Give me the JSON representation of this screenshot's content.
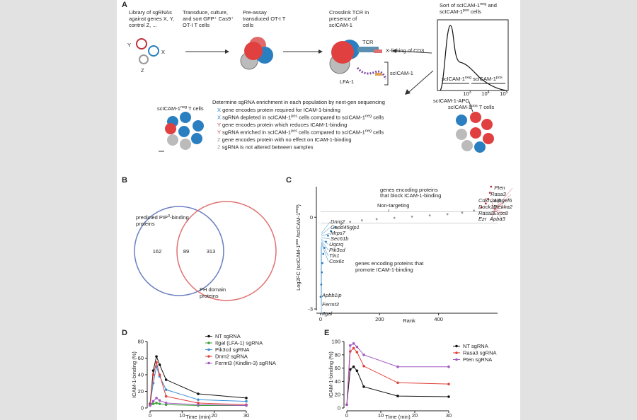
{
  "panel_a": {
    "label": "A",
    "step1": [
      "Library of sgRNAs",
      "against genes X, Y,",
      "control Z, ..."
    ],
    "step2": [
      "Transduce, culture,",
      "and sort GFP⁺ Cas9⁺",
      "OT-I T cells"
    ],
    "step3": [
      "Pre-assay",
      "transduced OT-I T",
      "cells"
    ],
    "step4": [
      "Crosslink TCR in",
      "presence of",
      "scICAM-1"
    ],
    "sort_title": [
      [
        "Sort of scICAM-1",
        "neg",
        " and"
      ],
      [
        "scICAM-1",
        "pos",
        " cells"
      ]
    ],
    "genes": {
      "x": "X",
      "y": "Y",
      "z": "Z"
    },
    "tcr": "TCR",
    "crosslink": "X-linking of CD3",
    "lfa": "LFA-1",
    "scicam": "scICAM-1",
    "gate_neg": [
      "scICAM-1",
      "neg"
    ],
    "gate_pos": [
      "scICAM-1",
      "pos"
    ],
    "hist_ticks": [
      [
        "10",
        "3"
      ],
      [
        "10",
        "4"
      ],
      [
        "10",
        "5"
      ]
    ],
    "hist_axis": "scICAM-1-APC",
    "neg_cells": [
      "scICAM-1",
      "neg",
      " T cells"
    ],
    "pos_cells": [
      "scICAM-1",
      "pos",
      " T cells"
    ],
    "heading": "Determine sgRNA enrichment in each population by next-gen sequencing",
    "lines": [
      {
        "letter": "X",
        "text": [
          " gene encodes protein required for ICAM-1-binding"
        ]
      },
      {
        "letter": "X",
        "text": [
          " sgRNA depleted in scICAM-1",
          "pos",
          " cells compared to scICAM-1",
          "neg",
          " cells"
        ]
      },
      {
        "letter": "Y",
        "text": [
          " gene encodes protein which reduces ICAM-1-binding"
        ]
      },
      {
        "letter": "Y",
        "text": [
          " sgRNA enriched in scICAM-1",
          "pos",
          " cells compared to scICAM-1",
          "neg",
          " cells"
        ]
      },
      {
        "letter": "Z",
        "text": [
          " gene encodes protein with no effect on ICAM-1-binding"
        ]
      },
      {
        "letter": "Z",
        "text": [
          " sgRNA is not altered between samples"
        ]
      }
    ]
  },
  "panel_b": {
    "label": "B",
    "left_name": [
      [
        "predicted PIP",
        "3",
        "-binding"
      ],
      [
        "proteins"
      ]
    ],
    "right_name": [
      "PH domain",
      "proteins"
    ],
    "left_only": "162",
    "both": "89",
    "right_only": "313"
  },
  "panel_c": {
    "label": "C",
    "type": "scatter",
    "y_label": [
      "Log2FC (scICAM-1",
      "pos",
      " /scICAM-1",
      "neg",
      ")"
    ],
    "x_label": "Rank",
    "xlim": [
      0,
      600
    ],
    "xticks": [
      0,
      200,
      400
    ],
    "ylim": [
      -3,
      1
    ],
    "yticks": [
      -3,
      0
    ],
    "x": [
      0,
      2,
      4,
      6,
      9,
      13,
      18,
      25,
      35,
      50,
      70,
      100,
      140,
      190,
      250,
      310,
      370,
      430,
      480,
      520,
      545,
      560,
      568,
      574,
      578
    ],
    "values": [
      -2.6,
      -2.2,
      -1.8,
      -1.5,
      -1.2,
      -1.0,
      -0.8,
      -0.6,
      -0.45,
      -0.32,
      -0.22,
      -0.15,
      -0.1,
      -0.06,
      -0.02,
      0.02,
      0.06,
      0.1,
      0.15,
      0.22,
      0.32,
      0.45,
      0.6,
      0.8,
      1.0
    ],
    "block_note": [
      "genes encoding proteins",
      "that block ICAM-1-binding"
    ],
    "nontargeting": "Non-targeting",
    "promote_note": [
      "genes encoding proteins that",
      "promote ICAM-1-binding"
    ],
    "blue_genes": [
      "Dnm2",
      "Gadd45gip1",
      "Mrps7",
      "Sec61b",
      "Uqcrq",
      "Pik3cd",
      "Tln1",
      "Cox6c",
      "Apbb1ip",
      "Fermt3",
      "Itgal"
    ],
    "red_genes": [
      "Pten",
      "Rasa3",
      "Cdkn2aip",
      "Arhgef6",
      "Dock10",
      "Plekha2",
      "Rasa2",
      "Exoc8",
      "Ezr",
      "Apba3"
    ]
  },
  "chart_data": [
    {
      "label": "D",
      "type": "line",
      "y_label": "ICAM-1-binding (%)",
      "x_label": "Time (min)",
      "x": [
        0,
        1,
        2,
        3,
        5,
        15,
        30
      ],
      "xlim": [
        0,
        30
      ],
      "xticks": [
        0,
        10,
        20,
        30
      ],
      "ylim": [
        0,
        80
      ],
      "yticks": [
        0,
        20,
        40,
        60,
        80
      ],
      "series": [
        {
          "name": "NT sgRNA",
          "color": "#111111",
          "values": [
            5,
            45,
            62,
            52,
            34,
            17,
            12
          ]
        },
        {
          "name": "Itgal (LFA-1) sgRNA",
          "color": "#3aa33a",
          "values": [
            3,
            5,
            6,
            5,
            4,
            3,
            3
          ]
        },
        {
          "name": "Pik3cd sgRNA",
          "color": "#3a8fd6",
          "values": [
            4,
            30,
            50,
            38,
            22,
            10,
            8
          ]
        },
        {
          "name": "Dnm2 sgRNA",
          "color": "#e0403a",
          "values": [
            4,
            40,
            55,
            40,
            14,
            6,
            4
          ]
        },
        {
          "name": "Fermt3 (Kindlin-3) sgRNA",
          "color": "#a05ac0",
          "values": [
            3,
            8,
            12,
            9,
            6,
            4,
            3
          ]
        }
      ]
    },
    {
      "label": "E",
      "type": "line",
      "y_label": "ICAM-1-binding (%)",
      "x_label": "Time (min)",
      "x": [
        0,
        1,
        2,
        3,
        5,
        15,
        30
      ],
      "xlim": [
        0,
        30
      ],
      "xticks": [
        0,
        10,
        20,
        30
      ],
      "ylim": [
        0,
        100
      ],
      "yticks": [
        0,
        20,
        40,
        60,
        80,
        100
      ],
      "series": [
        {
          "name": "NT sgRNA",
          "color": "#111111",
          "values": [
            5,
            58,
            62,
            56,
            32,
            18,
            17
          ]
        },
        {
          "name": "Rasa3 sgRNA",
          "color": "#e0403a",
          "values": [
            5,
            85,
            90,
            84,
            63,
            38,
            36
          ]
        },
        {
          "name": "Pten sgRNA",
          "color": "#a05ac0",
          "values": [
            5,
            94,
            97,
            92,
            80,
            62,
            62
          ]
        }
      ]
    }
  ]
}
